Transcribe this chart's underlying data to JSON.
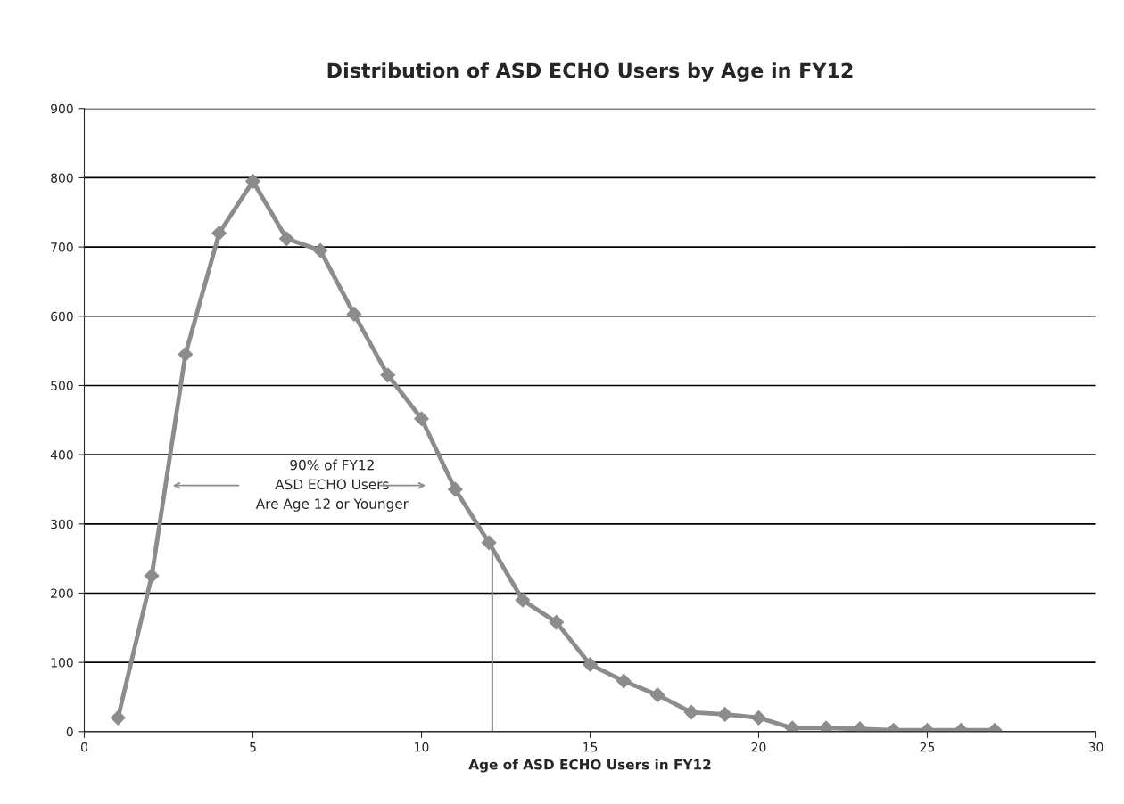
{
  "chart_data": {
    "type": "line",
    "title": "Distribution of ASD ECHO Users by Age in FY12",
    "xlabel": "Age of ASD ECHO Users in FY12",
    "x": [
      1,
      2,
      3,
      4,
      5,
      6,
      7,
      8,
      9,
      10,
      11,
      12,
      13,
      14,
      15,
      16,
      17,
      18,
      19,
      20,
      21,
      22,
      23,
      24,
      25,
      26,
      27
    ],
    "series": [
      {
        "color": "#8c8c8c",
        "values": [
          20,
          225,
          545,
          720,
          795,
          712,
          695,
          603,
          515,
          452,
          350,
          273,
          190,
          158,
          97,
          73,
          53,
          28,
          25,
          20,
          5,
          5,
          4,
          2,
          2,
          2,
          2
        ]
      }
    ],
    "xlim": [
      0,
      30
    ],
    "xticks": [
      0,
      5,
      10,
      15,
      20,
      25,
      30
    ],
    "ylim": [
      0,
      900
    ],
    "yticks": [
      0,
      100,
      200,
      300,
      400,
      500,
      600,
      700,
      800,
      900
    ],
    "grid": "y",
    "legend": false,
    "marker": "diamond",
    "line_style": "solid",
    "ref_lines": [
      {
        "axis": "x",
        "value": 12.1,
        "color": "#8c8c8c"
      }
    ],
    "annotations": [
      "90% of FY12\nASD ECHO Users\nAre Age 12 or Younger"
    ]
  }
}
